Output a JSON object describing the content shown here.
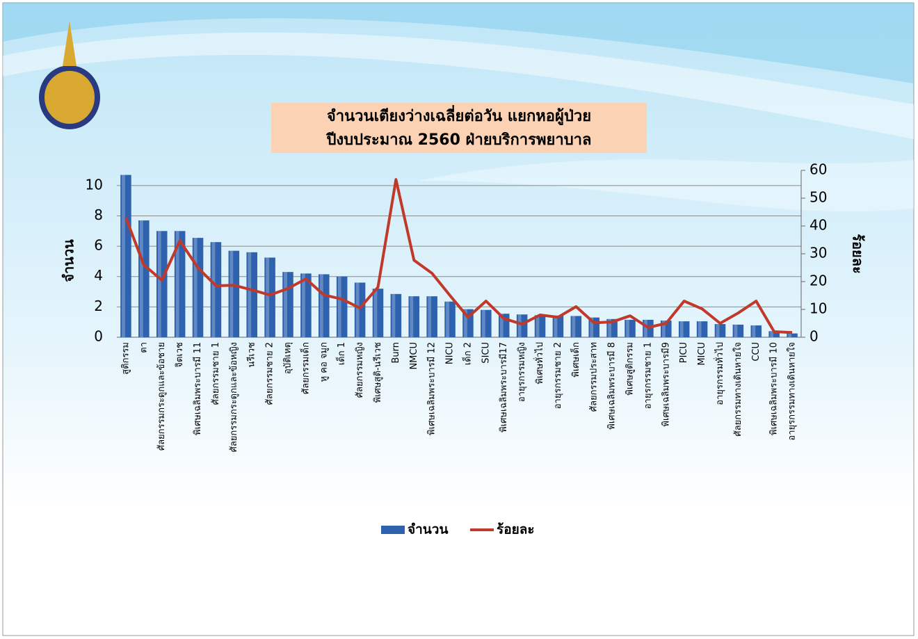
{
  "chart_data": {
    "type": "bar",
    "title": "จำนวนเตียงว่างเฉลี่ยต่อวัน  แยกหอผู้ป่วย",
    "subtitle": "ปีงบประมาณ 2560 ฝ่ายบริการพยาบาล",
    "y_label": "จำนวน",
    "y2_label": "ร้อยละ",
    "categories": [
      "สูติกรรม",
      "ตา",
      "ศัลยกรรมกระดูกและข้อชาย",
      "จิตเวช",
      "พิเศษเฉลิมพระบารมี 11",
      "ศัลยกรรมชาย 1",
      "ศัลยกรรมกระดูกและข้อหญิง",
      "นรีเวช",
      "ศัลยกรรมชาย 2",
      "อุบัติเหตุ",
      "ศัลยกรรมเด็ก",
      "หู คอ จมูก",
      "เด็ก 1",
      "ศัลยกรรมหญิง",
      "พิเศษสูติ-นรีเวช",
      "Burn",
      "NMCU",
      "พิเศษเฉลิมพระบารมี 12",
      "NICU",
      "เด็ก 2",
      "SICU",
      "พิเศษเฉลิมพระบารมี17",
      "อายุรกรรมหญิง",
      "พิเศษทั่วไป",
      "อายุรกรรมชาย 2",
      "พิเศษเด็ก",
      "ศัลยกรรมประสาท",
      "พิเศษเฉลิมพระบารมี 8",
      "พิเศษสูติกรรม",
      "อายุรกรรมชาย 1",
      "พิเศษเฉลิมพระบารมี9",
      "PICU",
      "MICU",
      "อายุรกรรมทั่วไป",
      "ศัลยกรรมทางเดินหายใจ",
      "CCU",
      "พิเศษเฉลิมพระบารมี 10",
      "อายุรกรรมทางเดินหายใจ"
    ],
    "series": [
      {
        "name": "จำนวน",
        "type": "bar",
        "color": "#2f62ae",
        "values": [
          10.7,
          7.7,
          7.0,
          7.0,
          6.55,
          6.27,
          5.7,
          5.6,
          5.25,
          4.3,
          4.2,
          4.15,
          4.0,
          3.6,
          3.2,
          2.85,
          2.7,
          2.7,
          2.35,
          1.85,
          1.8,
          1.55,
          1.5,
          1.45,
          1.43,
          1.4,
          1.3,
          1.2,
          1.15,
          1.15,
          1.1,
          1.05,
          1.05,
          0.87,
          0.83,
          0.78,
          0.4,
          0.25
        ]
      },
      {
        "name": "ร้อยละ",
        "type": "line",
        "axis": "y2",
        "color": "#c0392b",
        "values": [
          43,
          26,
          20.5,
          34.7,
          25,
          18.5,
          18.7,
          17,
          15.2,
          17.5,
          21,
          15.2,
          13.7,
          10.5,
          18,
          56.7,
          27.7,
          23,
          15,
          7.2,
          13,
          6.7,
          4.7,
          8,
          7.2,
          11,
          5.2,
          5.5,
          7.7,
          3.5,
          5,
          13,
          10.2,
          5,
          8.7,
          13,
          2,
          1.7
        ]
      }
    ],
    "ylim": [
      0,
      11
    ],
    "yticks": [
      0,
      2,
      4,
      6,
      8,
      10
    ],
    "y2lim": [
      0,
      60
    ],
    "y2ticks": [
      0,
      10,
      20,
      30,
      40,
      50,
      60
    ],
    "grid": true,
    "legend": "bottom"
  }
}
